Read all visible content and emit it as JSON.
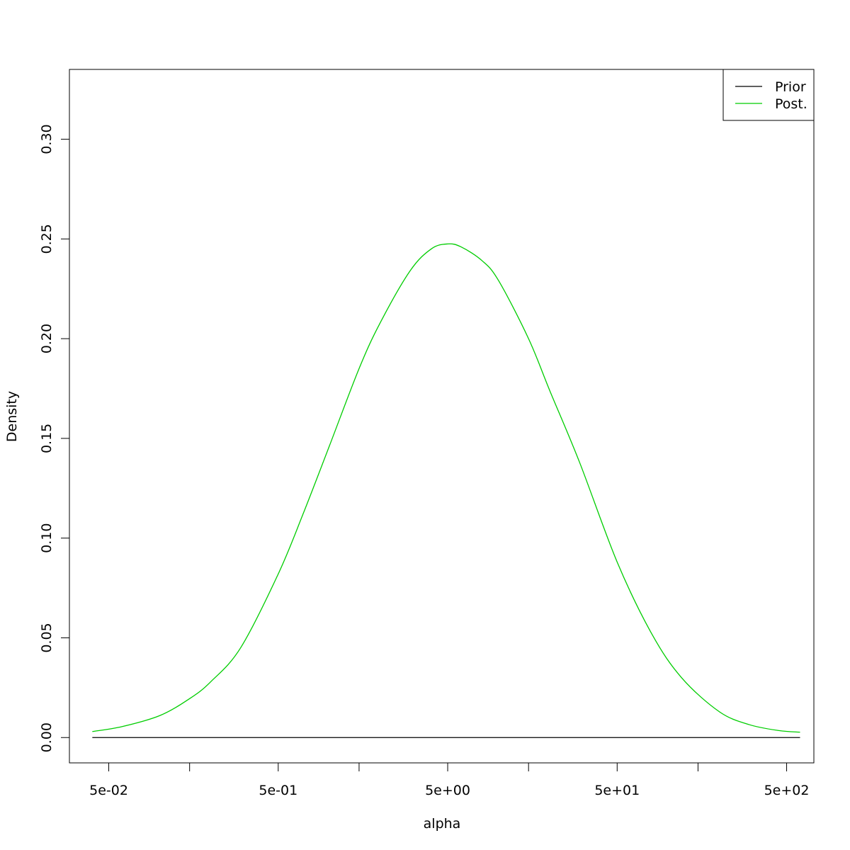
{
  "chart_data": {
    "type": "line",
    "title": "",
    "xlabel": "alpha",
    "ylabel": "Density",
    "x_scale": "log",
    "xlim": [
      0.0293,
      724
    ],
    "ylim": [
      -0.0127,
      0.335
    ],
    "x_ticks": [
      {
        "value": 0.05,
        "label": "5e-02"
      },
      {
        "value": 0.15,
        "label": ""
      },
      {
        "value": 0.5,
        "label": "5e-01"
      },
      {
        "value": 1.5,
        "label": ""
      },
      {
        "value": 5,
        "label": "5e+00"
      },
      {
        "value": 15,
        "label": ""
      },
      {
        "value": 50,
        "label": "5e+01"
      },
      {
        "value": 150,
        "label": ""
      },
      {
        "value": 500,
        "label": "5e+02"
      }
    ],
    "y_ticks": [
      {
        "value": 0.0,
        "label": "0.00"
      },
      {
        "value": 0.05,
        "label": "0.05"
      },
      {
        "value": 0.1,
        "label": "0.10"
      },
      {
        "value": 0.15,
        "label": "0.15"
      },
      {
        "value": 0.2,
        "label": "0.20"
      },
      {
        "value": 0.25,
        "label": "0.25"
      },
      {
        "value": 0.3,
        "label": "0.30"
      }
    ],
    "grid": false,
    "legend_position": "top-right",
    "series": [
      {
        "name": "Prior",
        "color": "#000000",
        "x": [
          0.04,
          0.1,
          0.3,
          1,
          3,
          10,
          30,
          100,
          300,
          600
        ],
        "y": [
          0.0,
          0.0,
          0.0,
          0.0,
          0.0,
          0.0,
          0.0,
          0.0,
          0.0,
          0.0
        ]
      },
      {
        "name": "Post.",
        "color": "#00cd00",
        "x": [
          0.04,
          0.06,
          0.1,
          0.15,
          0.2,
          0.3,
          0.5,
          0.7,
          1,
          1.5,
          2,
          3,
          4,
          5,
          6,
          8,
          10,
          15,
          20,
          30,
          50,
          80,
          120,
          200,
          300,
          450,
          600
        ],
        "y": [
          0.003,
          0.0055,
          0.011,
          0.0195,
          0.028,
          0.045,
          0.082,
          0.112,
          0.146,
          0.185,
          0.208,
          0.234,
          0.245,
          0.2475,
          0.246,
          0.239,
          0.229,
          0.2,
          0.174,
          0.138,
          0.088,
          0.052,
          0.03,
          0.013,
          0.0065,
          0.0035,
          0.0027
        ]
      }
    ]
  }
}
